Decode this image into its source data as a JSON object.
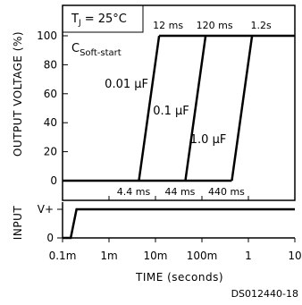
{
  "chart_data": {
    "type": "line",
    "title": "",
    "xlabel": "TIME (seconds)",
    "ylabel_top": "OUTPUT VOLTAGE (%)",
    "ylabel_bottom": "INPUT",
    "x_scale": "log",
    "xlim": [
      0.0001,
      10
    ],
    "x_ticks": [
      {
        "value": 0.0001,
        "label": "0.1m"
      },
      {
        "value": 0.001,
        "label": "1m"
      },
      {
        "value": 0.01,
        "label": "10m"
      },
      {
        "value": 0.1,
        "label": "100m"
      },
      {
        "value": 1,
        "label": "1"
      },
      {
        "value": 10,
        "label": "10"
      }
    ],
    "output_ylim": [
      0,
      100
    ],
    "output_y_ticks": [
      {
        "value": 0,
        "label": "0"
      },
      {
        "value": 20,
        "label": "20"
      },
      {
        "value": 40,
        "label": "40"
      },
      {
        "value": 60,
        "label": "60"
      },
      {
        "value": 80,
        "label": "80"
      },
      {
        "value": 100,
        "label": "100"
      }
    ],
    "input_y_ticks": [
      {
        "value": 0,
        "label": "0"
      },
      {
        "value": 1,
        "label": "V+"
      }
    ],
    "condition_label": "T",
    "condition_sub": "J",
    "condition_value": " = 25°C",
    "legend_title": "C",
    "legend_title_sub": "Soft-start",
    "series": [
      {
        "name": "0.01 μF",
        "start": 0.0044,
        "end": 0.012,
        "start_label": "4.4 ms",
        "end_label": "12 ms"
      },
      {
        "name": "0.1 μF",
        "start": 0.044,
        "end": 0.12,
        "start_label": "44 ms",
        "end_label": "120 ms"
      },
      {
        "name": "1.0 μF",
        "start": 0.44,
        "end": 1.2,
        "start_label": "440 ms",
        "end_label": "1.2s"
      }
    ],
    "input_signal": {
      "step_start": 0.00015,
      "step_end": 0.0002
    }
  },
  "doc_id": "DS012440-18"
}
